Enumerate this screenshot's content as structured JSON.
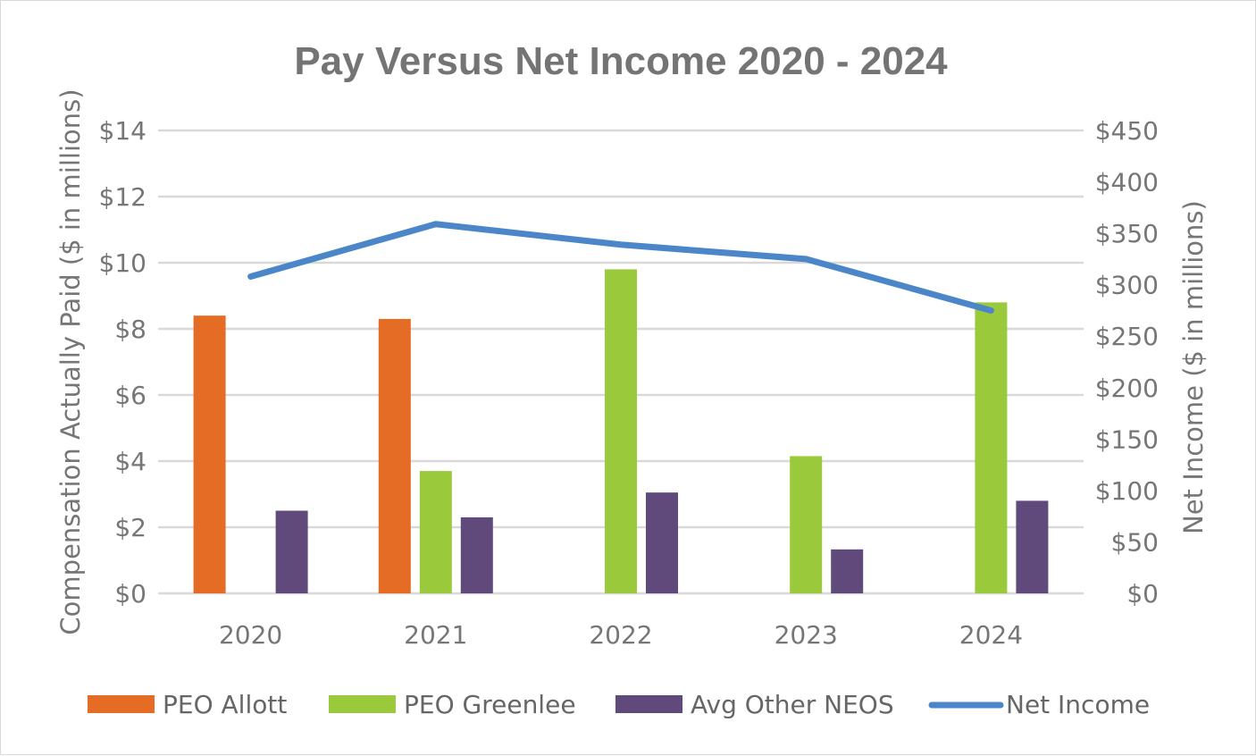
{
  "chart_data": {
    "type": "bar",
    "title": "Pay Versus Net Income 2020 - 2024",
    "categories": [
      "2020",
      "2021",
      "2022",
      "2023",
      "2024"
    ],
    "y_left": {
      "label": "Compensation Actually Paid ($ in millions)",
      "range": [
        0,
        14
      ],
      "ticks": [
        0,
        2,
        4,
        6,
        8,
        10,
        12,
        14
      ],
      "tick_labels": [
        "$0",
        "$2",
        "$4",
        "$6",
        "$8",
        "$10",
        "$12",
        "$14"
      ]
    },
    "y_right": {
      "label": "Net Income ($ in millions)",
      "range": [
        0,
        450
      ],
      "ticks": [
        0,
        50,
        100,
        150,
        200,
        250,
        300,
        350,
        400,
        450
      ],
      "tick_labels": [
        "$0",
        "$50",
        "$100",
        "$150",
        "$200",
        "$250",
        "$300",
        "$350",
        "$400",
        "$450"
      ]
    },
    "series": [
      {
        "name": "PEO Allott",
        "type": "bar",
        "axis": "left",
        "color": "#E46C24",
        "values": [
          8.4,
          8.3,
          null,
          null,
          null
        ]
      },
      {
        "name": "PEO Greenlee",
        "type": "bar",
        "axis": "left",
        "color": "#9BC93C",
        "values": [
          null,
          3.7,
          9.8,
          4.15,
          8.8
        ]
      },
      {
        "name": "Avg Other NEOS",
        "type": "bar",
        "axis": "left",
        "color": "#604A7B",
        "values": [
          2.5,
          2.3,
          3.05,
          1.33,
          2.8
        ]
      },
      {
        "name": "Net Income",
        "type": "line",
        "axis": "right",
        "color": "#4A86C8",
        "values": [
          308,
          359,
          339,
          325,
          275
        ]
      }
    ],
    "grid": true,
    "legend_position": "bottom"
  }
}
